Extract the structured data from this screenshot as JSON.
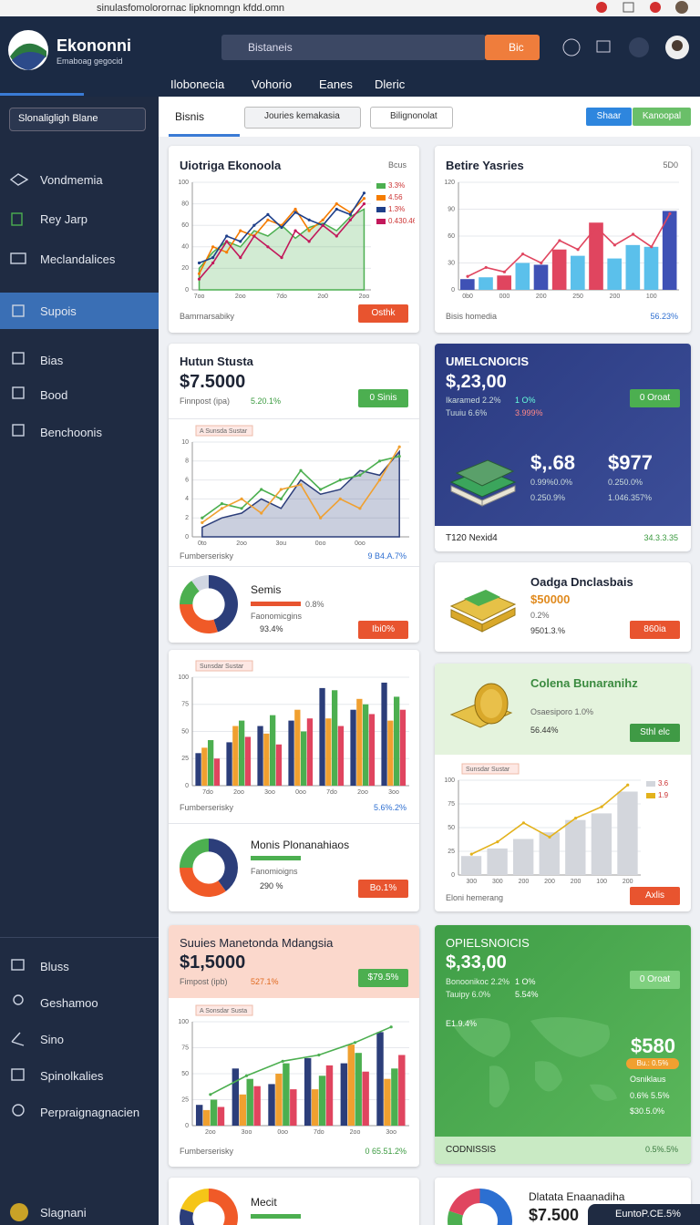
{
  "browser": {
    "url": "sinulasfomolorornac lipknomngn kfdd.omn"
  },
  "header": {
    "logo": "Ekononni",
    "tagline": "Emaboag gegocid",
    "search": "Bistaneis",
    "search_button": "Bic",
    "nav": [
      "Ilobonecia",
      "Vohorio",
      "Eanes",
      "Dleric"
    ]
  },
  "sidebar": {
    "button": "Slonaligligh Blane",
    "items": [
      "Vondmemia",
      "Rey Jarp",
      "Meclandalices",
      "Supois",
      "Bias",
      "Bood",
      "Benchoonis"
    ],
    "bottom_items": [
      "Bluss",
      "Geshamoo",
      "Sino",
      "Spinolkalies",
      "Perpraignagnacien",
      "Slagnani"
    ]
  },
  "toolbar": {
    "tab": "Bisnis",
    "search": "Jouries kemakasia",
    "filter": "Bilignonolat",
    "buttons": [
      "Shaar",
      "Kanoopal"
    ]
  },
  "cards": [
    {
      "title": "Uiotriga Ekonoola",
      "menu": "Bcus",
      "footer": "Bamrnarsabiky",
      "button": "Osthk"
    },
    {
      "title": "Betire Yasries",
      "menu": "5D0",
      "footer": "Bisis homedia",
      "footer_value": "56.23%"
    },
    {
      "title": "Hutun Stusta",
      "value": "$7.5000",
      "note": "Finnpost (ipa)",
      "change": "5.20.1%",
      "button": "0 Sinis",
      "footer": "Fumberserisky",
      "footer_value": "9 B4.A.7%",
      "donut": {
        "title": "Semis",
        "lines": [
          "0.8%",
          "Faonomicgins",
          "93.4%"
        ],
        "button": "Ibi0%"
      }
    },
    {
      "title": "UMELCNOICIS",
      "value": "$,23,00",
      "rows": [
        [
          "Ikaramed 2.2%",
          "1 O%"
        ],
        [
          "Tuuiu 6.6%",
          "3.999%"
        ]
      ],
      "button": "0 Oroat",
      "stats": [
        {
          "value": "$,.68",
          "lines": [
            "0.99%0.0%",
            "0.250.9%"
          ]
        },
        {
          "value": "$977",
          "lines": [
            "0.250.0%",
            "1.046.357%"
          ]
        }
      ],
      "footer": "T120 Nexid4",
      "footer_value": "34.3.3.35"
    },
    {
      "title": "Oadga Dnclasbais",
      "value": "$50000",
      "lines": [
        "0.2%",
        "9501.3.%"
      ],
      "button": "860ia"
    },
    {
      "footer": "Fumberserisky",
      "footer_value": "5.6%.2%",
      "donut": {
        "title": "Monis Plonanahiaos",
        "lines": [
          "Fanomioigns",
          "290 %"
        ],
        "button": "Bo.1%"
      }
    },
    {
      "title": "Colena Bunaranihz",
      "lines": [
        "Osaesiporo 1.0%",
        "56.44%"
      ],
      "button": "Sthl elc",
      "footer": "Eloni hemerang",
      "footer_button": "Axlis"
    },
    {
      "title": "Suuies Manetonda Mdangsia",
      "value": "$1,5000",
      "note": "Fimpost (ipb)",
      "change": "527.1%",
      "button": "$79.5%",
      "footer": "Fumberserisky",
      "footer_value": "0 65.51.2%"
    },
    {
      "title": "OPIELSNOICIS",
      "value": "$,33,00",
      "rows": [
        [
          "Bonoonikoc 2.2%",
          "1 O%"
        ],
        [
          "Tauipy 6.0%",
          "5.54%"
        ]
      ],
      "button": "0 Oroat",
      "map_label": "E1.9.4%",
      "stat": "$580",
      "tag": "Bu.: 0.5%",
      "lines": [
        "Osniklaus",
        "0.6% 5.5%",
        "$30.5.0%"
      ],
      "footer": "CODNISSIS",
      "footer_value": "0.5%.5%"
    },
    {
      "title": "Mecit"
    },
    {
      "title": "Dlatata Enaanadiha",
      "value": "$7.500"
    }
  ],
  "floating": "EuntoP.CE.5%",
  "chart_data": [
    {
      "type": "line",
      "categories": [
        "7oo",
        null,
        null,
        "2oo",
        null,
        null,
        "7do",
        null,
        null,
        "2o0",
        null,
        null,
        "2oo"
      ],
      "ylim": [
        0,
        100
      ],
      "yticks": [
        0,
        20,
        40,
        60,
        80,
        100
      ],
      "grid": true,
      "series": [
        {
          "name": "3.3%",
          "type": "area",
          "color": "#4caf50",
          "values": [
            20,
            35,
            45,
            40,
            55,
            50,
            60,
            48,
            58,
            62,
            55,
            68,
            75
          ]
        },
        {
          "name": "4.56",
          "type": "line",
          "color": "#f57c00",
          "values": [
            15,
            40,
            35,
            55,
            50,
            65,
            60,
            75,
            55,
            65,
            80,
            72,
            85
          ]
        },
        {
          "name": "1.3%",
          "type": "line",
          "color": "#1e3f8a",
          "values": [
            25,
            30,
            50,
            45,
            60,
            70,
            58,
            72,
            65,
            60,
            75,
            70,
            90
          ]
        },
        {
          "name": "0.430.46",
          "type": "line",
          "color": "#c2185b",
          "values": [
            10,
            25,
            45,
            30,
            50,
            40,
            30,
            55,
            45,
            60,
            50,
            65,
            80
          ]
        }
      ]
    },
    {
      "type": "bar",
      "categories": [
        "0b0",
        null,
        "000",
        null,
        "200",
        null,
        "250",
        null,
        "200",
        null,
        "100",
        null
      ],
      "ylim": [
        0,
        120
      ],
      "yticks": [
        0,
        30,
        60,
        90,
        120
      ],
      "grid": true,
      "series": [
        {
          "type": "bar",
          "color": "#5bc0eb",
          "colors": [
            "#3f51b5",
            "#5bc0eb",
            "#e0455f",
            "#5bc0eb",
            "#3f51b5",
            "#e0455f",
            "#5bc0eb",
            "#e0455f",
            "#5bc0eb",
            "#5bc0eb",
            "#5bc0eb",
            "#3f51b5"
          ],
          "values": [
            12,
            14,
            16,
            30,
            28,
            45,
            38,
            75,
            35,
            50,
            48,
            88
          ]
        },
        {
          "type": "line",
          "color": "#e0455f",
          "values": [
            15,
            25,
            20,
            40,
            30,
            55,
            45,
            70,
            50,
            62,
            48,
            85
          ]
        }
      ]
    },
    {
      "type": "line",
      "label": "A Sunsda Sustar",
      "categories": [
        "0to",
        null,
        "2oo",
        null,
        "3ou",
        null,
        "0oo",
        null,
        "0oo",
        null,
        null
      ],
      "ylim": [
        0,
        10
      ],
      "yticks": [
        0,
        2,
        4,
        6,
        8,
        10
      ],
      "grid": true,
      "series": [
        {
          "type": "area",
          "color": "#2c3e7a",
          "values": [
            1,
            2,
            2.5,
            4,
            3,
            6,
            4.5,
            5,
            7,
            6.5,
            9
          ]
        },
        {
          "type": "line",
          "color": "#4caf50",
          "values": [
            2,
            3.5,
            3,
            5,
            4,
            7,
            5,
            6,
            6.5,
            8,
            8.5
          ]
        },
        {
          "type": "line",
          "color": "#f0a030",
          "values": [
            1.5,
            3,
            4,
            2.5,
            5,
            5.5,
            2,
            4,
            3,
            6,
            9.5
          ]
        }
      ]
    },
    {
      "type": "pie",
      "values": [
        45,
        30,
        15,
        10
      ],
      "colors": [
        "#2c3e7a",
        "#f05a28",
        "#4caf50",
        "#d0d6e2"
      ]
    },
    {
      "type": "bar",
      "label": "Sunsdar Sustar",
      "categories": [
        "7do",
        "2oo",
        "3oo",
        "0oo",
        "7do",
        "2oo",
        "3oo"
      ],
      "ylim": [
        0,
        100
      ],
      "yticks": [
        0,
        25,
        50,
        75,
        100
      ],
      "grid": true,
      "series": [
        {
          "type": "bar",
          "color": "#2c3e7a",
          "values": [
            30,
            40,
            55,
            60,
            90,
            70,
            95
          ]
        },
        {
          "type": "bar",
          "color": "#f0a030",
          "values": [
            35,
            55,
            48,
            70,
            62,
            80,
            60
          ]
        },
        {
          "type": "bar",
          "color": "#4caf50",
          "values": [
            42,
            60,
            65,
            50,
            88,
            75,
            82
          ]
        },
        {
          "type": "bar",
          "color": "#e0455f",
          "values": [
            25,
            45,
            38,
            62,
            55,
            66,
            70
          ]
        }
      ]
    },
    {
      "type": "pie",
      "values": [
        40,
        35,
        25
      ],
      "colors": [
        "#2c3e7a",
        "#f05a28",
        "#4caf50"
      ]
    },
    {
      "type": "bar",
      "label": "A Sonsdar Susta",
      "categories": [
        "2oo",
        "3oo",
        "0oo",
        "7do",
        "2oo",
        "3oo"
      ],
      "ylim": [
        0,
        100
      ],
      "yticks": [
        0,
        25,
        50,
        75,
        100
      ],
      "grid": true,
      "series": [
        {
          "type": "bar",
          "color": "#2c3e7a",
          "values": [
            20,
            55,
            40,
            65,
            60,
            90
          ]
        },
        {
          "type": "bar",
          "color": "#f0a030",
          "values": [
            15,
            30,
            50,
            35,
            78,
            45
          ]
        },
        {
          "type": "bar",
          "color": "#4caf50",
          "values": [
            25,
            45,
            60,
            48,
            70,
            55
          ]
        },
        {
          "type": "bar",
          "color": "#e0455f",
          "values": [
            18,
            38,
            35,
            58,
            52,
            68
          ]
        },
        {
          "type": "line",
          "color": "#4caf50",
          "values": [
            30,
            48,
            62,
            68,
            80,
            95
          ]
        }
      ]
    },
    {
      "type": "pie",
      "values": [
        50,
        30,
        20
      ],
      "colors": [
        "#f05a28",
        "#2c3e7a",
        "#f5c518"
      ]
    },
    {
      "type": "bar",
      "label": "Sunsdar Sustar",
      "categories": [
        "300",
        "300",
        "200",
        "200",
        "200",
        "100",
        "200"
      ],
      "ylim": [
        0,
        100
      ],
      "yticks": [
        0,
        25,
        50,
        75,
        100
      ],
      "grid": true,
      "series": [
        {
          "name": "3.6",
          "type": "bar",
          "color": "#d3d6dc",
          "values": [
            20,
            28,
            38,
            45,
            58,
            65,
            88
          ]
        },
        {
          "name": "1.9",
          "type": "line",
          "color": "#e3b21c",
          "values": [
            22,
            35,
            55,
            40,
            60,
            72,
            95
          ]
        }
      ]
    },
    {
      "type": "pie",
      "values": [
        35,
        25,
        20,
        20
      ],
      "colors": [
        "#2c6fd1",
        "#f05a28",
        "#4caf50",
        "#e0455f"
      ]
    }
  ]
}
